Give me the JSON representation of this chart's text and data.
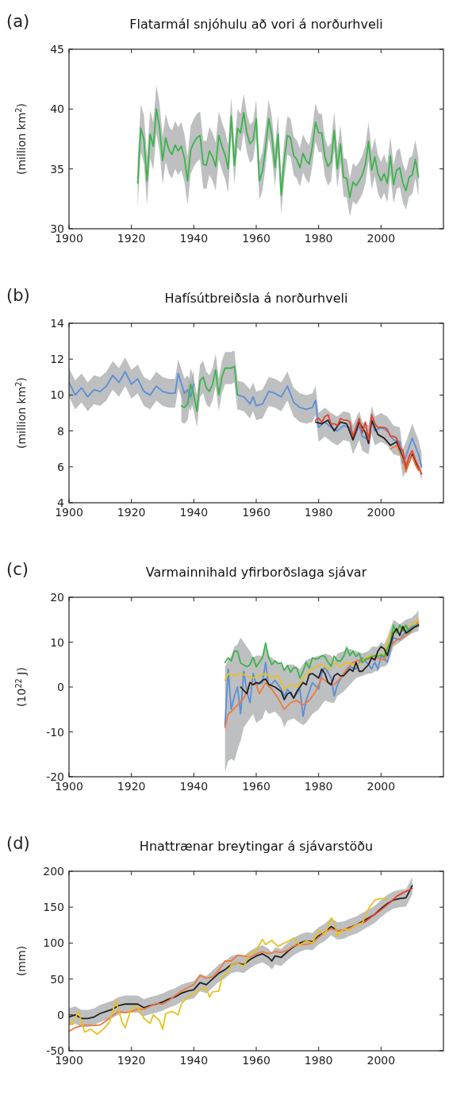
{
  "chart_data": [
    {
      "type": "line",
      "title": "Flatarmál snjóhulu að vori á norðurhveli",
      "ylabel": "(million km$^{2}$)",
      "annotations": [
        "(a)"
      ],
      "xlim": [
        1900,
        2020
      ],
      "xticks": [
        1900,
        1920,
        1940,
        1960,
        1980,
        2000
      ],
      "ylim": [
        30,
        45
      ],
      "yticks": [
        30,
        35,
        40,
        45
      ],
      "series": [
        {
          "color": "#3cb44a",
          "x": [
            1922,
            1923,
            1924,
            1925,
            1926,
            1927,
            1928,
            1929,
            1930,
            1931,
            1932,
            1933,
            1934,
            1935,
            1936,
            1937,
            1938,
            1939,
            1940,
            1941,
            1942,
            1943,
            1944,
            1945,
            1946,
            1947,
            1948,
            1949,
            1950,
            1951,
            1952,
            1953,
            1954,
            1955,
            1956,
            1957,
            1958,
            1959,
            1960,
            1961,
            1962,
            1963,
            1964,
            1965,
            1966,
            1967,
            1968,
            1969,
            1970,
            1971,
            1972,
            1973,
            1974,
            1975,
            1976,
            1977,
            1978,
            1979,
            1980,
            1981,
            1982,
            1983,
            1984,
            1985,
            1986,
            1987,
            1988,
            1989,
            1990,
            1991,
            1992,
            1993,
            1994,
            1995,
            1996,
            1997,
            1998,
            1999,
            2000,
            2001,
            2002,
            2003,
            2004,
            2005,
            2006,
            2007,
            2008,
            2009,
            2010,
            2011,
            2012
          ],
          "values": [
            33.8,
            38.4,
            37.5,
            34.0,
            37.9,
            36.9,
            40.0,
            38.5,
            35.7,
            37.6,
            36.6,
            36.2,
            37.0,
            36.5,
            36.9,
            35.9,
            34.0,
            36.6,
            37.2,
            37.6,
            37.8,
            35.4,
            35.3,
            36.5,
            36.0,
            35.2,
            37.8,
            36.9,
            36.2,
            35.0,
            39.4,
            35.3,
            38.4,
            38.0,
            39.7,
            38.0,
            37.1,
            37.4,
            39.2,
            34.0,
            34.8,
            36.8,
            39.2,
            37.8,
            35.1,
            37.9,
            32.8,
            35.8,
            37.8,
            37.6,
            36.1,
            35.8,
            35.1,
            36.3,
            35.7,
            35.4,
            36.9,
            38.9,
            38.0,
            38.0,
            36.0,
            35.2,
            35.6,
            38.2,
            35.0,
            37.1,
            34.3,
            34.2,
            32.6,
            33.9,
            33.6,
            34.0,
            34.5,
            35.4,
            37.3,
            34.9,
            36.0,
            34.6,
            34.0,
            34.6,
            33.8,
            36.1,
            33.7,
            34.9,
            35.1,
            33.8,
            33.2,
            34.3,
            34.5,
            35.8,
            34.3
          ],
          "lower": [
            31.8,
            36.4,
            35.5,
            32.0,
            35.9,
            34.9,
            38.0,
            36.5,
            33.7,
            35.6,
            34.6,
            34.2,
            35.0,
            34.5,
            34.9,
            33.9,
            32.0,
            34.6,
            35.2,
            35.6,
            35.8,
            33.4,
            33.3,
            34.5,
            34.0,
            33.2,
            35.8,
            34.9,
            34.2,
            33.0,
            37.8,
            33.7,
            36.8,
            36.4,
            38.1,
            36.4,
            35.5,
            35.8,
            37.6,
            32.4,
            33.2,
            35.2,
            37.6,
            36.2,
            33.5,
            36.3,
            31.2,
            34.2,
            36.2,
            36.0,
            34.5,
            34.2,
            33.5,
            34.7,
            34.1,
            33.8,
            35.3,
            37.3,
            36.4,
            36.4,
            34.4,
            33.6,
            34.0,
            36.6,
            33.4,
            35.5,
            32.7,
            32.6,
            31.0,
            32.3,
            32.0,
            32.4,
            32.9,
            33.8,
            35.7,
            33.3,
            34.4,
            33.0,
            32.4,
            33.0,
            32.2,
            34.5,
            32.1,
            33.3,
            33.5,
            32.2,
            31.6,
            32.7,
            32.9,
            34.2,
            32.7
          ],
          "upper": [
            35.8,
            40.4,
            39.5,
            36.0,
            39.9,
            38.9,
            42.0,
            40.5,
            37.7,
            39.6,
            38.6,
            38.2,
            39.0,
            38.5,
            38.9,
            37.9,
            36.0,
            38.6,
            39.2,
            39.6,
            39.8,
            37.4,
            37.3,
            38.5,
            38.0,
            37.2,
            39.8,
            38.9,
            38.2,
            37.0,
            41.0,
            36.9,
            40.0,
            39.6,
            41.3,
            39.6,
            38.7,
            39.0,
            40.8,
            35.6,
            36.4,
            38.4,
            40.8,
            39.4,
            36.7,
            39.5,
            34.4,
            37.4,
            39.4,
            39.2,
            37.7,
            37.4,
            36.7,
            37.9,
            37.3,
            37.0,
            38.5,
            40.5,
            39.6,
            39.6,
            37.6,
            36.8,
            37.2,
            39.8,
            36.6,
            38.7,
            35.9,
            35.8,
            34.2,
            35.5,
            35.2,
            35.6,
            36.1,
            37.0,
            38.9,
            36.5,
            37.6,
            36.2,
            35.6,
            36.2,
            35.4,
            37.7,
            35.3,
            36.5,
            36.7,
            35.4,
            34.8,
            35.9,
            36.1,
            37.4,
            35.9
          ]
        }
      ]
    },
    {
      "type": "line",
      "title": "Hafísútbreiðsla á norðurhveli",
      "ylabel": "(million km$^{2}$)",
      "annotations": [
        "(b)"
      ],
      "xlim": [
        1900,
        2020
      ],
      "xticks": [
        1900,
        1920,
        1940,
        1960,
        1980,
        2000
      ],
      "ylim": [
        4,
        14
      ],
      "yticks": [
        4,
        6,
        8,
        10,
        12,
        14
      ],
      "series": [
        {
          "color": "#5b8fd6",
          "x": [
            1900,
            1902,
            1904,
            1906,
            1908,
            1910,
            1912,
            1914,
            1916,
            1918,
            1920,
            1922,
            1924,
            1926,
            1928,
            1930,
            1932,
            1934,
            1935,
            1937,
            1938,
            1939,
            1940,
            1947,
            1954,
            1956,
            1958,
            1959,
            1960,
            1962,
            1964,
            1966,
            1968,
            1970,
            1972,
            1974,
            1976,
            1978,
            1979,
            1980,
            1982,
            1984,
            1986,
            1988,
            1990,
            1991,
            1993,
            1994,
            1996,
            1997,
            1998,
            2000,
            2002,
            2004,
            2006,
            2007,
            2008,
            2010,
            2012,
            2013
          ],
          "values": [
            10.7,
            10.0,
            10.4,
            9.9,
            10.3,
            10.2,
            10.5,
            11.1,
            10.7,
            11.3,
            10.6,
            10.9,
            10.2,
            10.0,
            10.5,
            10.2,
            10.1,
            10.1,
            11.2,
            10.1,
            10.3,
            9.9,
            10.6,
            null,
            10.0,
            9.9,
            9.5,
            9.9,
            9.4,
            9.5,
            10.2,
            10.1,
            9.9,
            10.5,
            9.6,
            9.3,
            9.2,
            9.3,
            9.7,
            8.2,
            8.5,
            8.2,
            8.0,
            8.3,
            8.2,
            7.5,
            8.3,
            7.7,
            7.5,
            8.6,
            8.0,
            8.2,
            8.0,
            7.5,
            7.4,
            6.2,
            6.6,
            7.6,
            6.7,
            6.0
          ],
          "lower": [
            9.9,
            9.2,
            9.6,
            9.1,
            9.5,
            9.4,
            9.7,
            10.3,
            9.9,
            10.5,
            9.8,
            10.1,
            9.4,
            9.2,
            9.7,
            9.4,
            9.3,
            9.3,
            10.4,
            9.3,
            9.5,
            9.1,
            9.8,
            null,
            9.2,
            9.1,
            8.7,
            9.1,
            8.6,
            8.7,
            9.4,
            9.3,
            9.1,
            9.7,
            8.8,
            8.5,
            8.4,
            8.5,
            8.9,
            7.4,
            7.7,
            7.4,
            7.2,
            7.5,
            7.4,
            6.7,
            7.5,
            6.9,
            6.7,
            7.8,
            7.2,
            7.4,
            7.2,
            6.7,
            6.6,
            5.4,
            5.8,
            6.8,
            5.9,
            5.2
          ],
          "upper": [
            11.5,
            10.8,
            11.2,
            10.7,
            11.1,
            11.0,
            11.3,
            11.9,
            11.5,
            12.1,
            11.4,
            11.7,
            11.0,
            10.8,
            11.3,
            11.0,
            10.9,
            10.9,
            12.0,
            10.9,
            11.1,
            10.7,
            11.4,
            null,
            10.8,
            10.7,
            10.3,
            10.7,
            10.2,
            10.3,
            11.0,
            10.9,
            10.7,
            11.3,
            10.4,
            10.1,
            10.0,
            10.1,
            10.5,
            9.0,
            9.3,
            9.0,
            8.8,
            9.1,
            9.0,
            8.3,
            9.1,
            8.5,
            8.3,
            9.4,
            8.8,
            9.0,
            8.8,
            8.3,
            8.2,
            7.0,
            7.4,
            8.4,
            7.5,
            6.8
          ]
        },
        {
          "color": "#3cb44a",
          "x": [
            1936,
            1937,
            1938,
            1939,
            1940,
            1941,
            1942,
            1943,
            1944,
            1945,
            1946,
            1947,
            1948,
            1949,
            1950,
            1951,
            1952,
            1953,
            1954
          ],
          "values": [
            9.4,
            9.3,
            9.5,
            10.6,
            10.0,
            9.1,
            10.8,
            11.0,
            10.4,
            10.2,
            10.6,
            11.4,
            10.0,
            11.0,
            11.5,
            11.5,
            11.5,
            11.6,
            10.0
          ],
          "lower": [
            8.5,
            8.4,
            8.6,
            9.7,
            9.1,
            8.2,
            9.9,
            10.1,
            9.5,
            9.3,
            9.7,
            10.5,
            9.1,
            10.1,
            10.6,
            10.6,
            10.6,
            10.7,
            9.1
          ],
          "upper": [
            10.3,
            10.2,
            10.4,
            11.5,
            10.9,
            10.0,
            11.7,
            11.9,
            11.3,
            11.1,
            11.5,
            12.3,
            10.9,
            11.9,
            12.4,
            12.4,
            12.4,
            12.5,
            10.9
          ]
        },
        {
          "color": "#222222",
          "x": [
            1979,
            1981,
            1983,
            1985,
            1987,
            1989,
            1991,
            1993,
            1995,
            1996,
            1997,
            1999,
            2001,
            2003,
            2005,
            2007,
            2008,
            2010,
            2012
          ],
          "values": [
            8.5,
            8.4,
            8.6,
            8.0,
            8.5,
            8.4,
            7.5,
            8.5,
            7.9,
            7.3,
            8.6,
            7.8,
            7.6,
            7.2,
            7.4,
            6.5,
            5.8,
            6.7,
            5.9
          ]
        },
        {
          "color": "#f07a3c",
          "x": [
            2003,
            2005,
            2006,
            2007,
            2008,
            2009,
            2010,
            2011,
            2012
          ],
          "values": [
            7.0,
            7.2,
            6.8,
            6.4,
            5.7,
            6.3,
            6.6,
            6.1,
            5.8
          ]
        },
        {
          "color": "#e8412b",
          "x": [
            1979,
            1980,
            1981,
            1982,
            1983,
            1984,
            1985,
            1986,
            1987,
            1988,
            1989,
            1990,
            1991,
            1992,
            1993,
            1994,
            1995,
            1996,
            1997,
            1998,
            1999,
            2000,
            2001,
            2002,
            2003,
            2004,
            2005,
            2006,
            2007,
            2008,
            2009,
            2010,
            2011,
            2012,
            2013
          ],
          "values": [
            8.6,
            8.7,
            8.5,
            8.8,
            8.9,
            8.4,
            8.4,
            8.3,
            8.7,
            8.6,
            8.6,
            8.5,
            7.7,
            8.2,
            8.7,
            7.9,
            8.5,
            7.5,
            8.9,
            8.4,
            8.2,
            8.2,
            8.2,
            8.1,
            7.7,
            7.7,
            7.6,
            7.1,
            6.9,
            6.0,
            6.6,
            6.9,
            6.4,
            6.0,
            5.6
          ]
        }
      ]
    },
    {
      "type": "line",
      "title": "Varmainnihald yfirborðslaga sjávar",
      "ylabel": "(10$^{22}$ J)",
      "annotations": [
        "(c)"
      ],
      "xlim": [
        1900,
        2020
      ],
      "xticks": [
        1900,
        1920,
        1940,
        1960,
        1980,
        2000
      ],
      "ylim": [
        -20,
        20
      ],
      "yticks": [
        -20,
        -10,
        0,
        10,
        20
      ],
      "series": [
        {
          "color": "#5b8fd6",
          "x": [
            1950,
            1951,
            1952,
            1953,
            1954,
            1955,
            1956,
            1957,
            1958,
            1959,
            1960,
            1962,
            1963,
            1964,
            1966,
            1968,
            1969,
            1970,
            1972,
            1974,
            1975,
            1976,
            1978,
            1980,
            1981,
            1982,
            1984,
            1985,
            1986,
            1988,
            1990,
            1992,
            1994,
            1996,
            1997,
            1998,
            1999,
            2000,
            2001,
            2002,
            2004,
            2006,
            2008,
            2010,
            2012
          ],
          "values": [
            -8.5,
            4.0,
            -5.0,
            -2.0,
            0.0,
            -6.0,
            3.5,
            -1.0,
            -3.5,
            3.0,
            0.5,
            1.0,
            5.5,
            0.0,
            1.5,
            -0.5,
            -2.0,
            -0.5,
            -2.5,
            -0.5,
            -6.5,
            -3.0,
            1.0,
            -0.5,
            3.0,
            4.5,
            2.0,
            -2.0,
            0.5,
            3.0,
            4.5,
            4.0,
            6.5,
            5.0,
            4.0,
            5.5,
            4.0,
            7.0,
            6.5,
            5.5,
            11.0,
            10.5,
            12.5,
            13.5,
            14.0
          ],
          "lower": [
            -19,
            -16.5,
            -16,
            -16.5,
            -14,
            -12,
            -9,
            -8,
            -7,
            -6,
            -8,
            -7,
            -5,
            -6,
            -5.5,
            -7,
            -9,
            -7.5,
            -7,
            -8,
            -8.5,
            -8,
            -6,
            -5,
            -4,
            -3,
            -3.5,
            -3.5,
            -2,
            -1,
            0.5,
            2,
            2.5,
            3,
            3,
            3.5,
            3.5,
            4.5,
            4.5,
            5,
            9,
            10,
            11,
            12,
            12.5
          ],
          "upper": [
            4.5,
            6,
            7,
            9,
            9.5,
            11,
            10,
            9,
            8,
            6.5,
            7,
            7,
            9,
            7,
            6,
            5,
            4,
            5,
            5,
            4,
            5,
            6,
            6.5,
            7,
            7,
            7.5,
            7,
            6,
            7.5,
            8,
            8.5,
            8,
            7.5,
            8,
            9,
            9,
            9,
            10,
            9.5,
            11,
            15,
            14,
            15,
            15.5,
            17
          ]
        },
        {
          "color": "#f07a3c",
          "x": [
            1950,
            1951,
            1952,
            1954,
            1956,
            1958,
            1960,
            1961,
            1963,
            1965,
            1967,
            1969,
            1971,
            1973,
            1975,
            1977,
            1979,
            1981,
            1983,
            1985,
            1987,
            1989,
            1991,
            1993,
            1995,
            1997,
            1999,
            2001,
            2003,
            2005,
            2007,
            2009,
            2012
          ],
          "values": [
            -9,
            -6.0,
            -5.5,
            -4.0,
            -2.5,
            1.0,
            0.5,
            -1.5,
            1.0,
            -0.5,
            -2.5,
            -5.0,
            -3.5,
            -3.0,
            -4.0,
            -3.0,
            -1.0,
            2.0,
            1.0,
            0.5,
            2.0,
            4.0,
            5.5,
            6.0,
            6.0,
            6.5,
            6.5,
            6.0,
            9.0,
            10.5,
            11.0,
            12.0,
            14.5
          ]
        },
        {
          "color": "#e8c11f",
          "x": [
            1950,
            1951,
            1953,
            1955,
            1957,
            1959,
            1961,
            1963,
            1965,
            1967,
            1969,
            1971,
            1973,
            1975,
            1977,
            1979,
            1981,
            1983,
            1985,
            1987,
            1989,
            1991,
            1993,
            1995,
            1997,
            1999,
            2001,
            2003,
            2005,
            2007,
            2009,
            2012
          ],
          "values": [
            1.5,
            3.0,
            2.5,
            3.0,
            2.5,
            2.0,
            2.5,
            3.0,
            2.0,
            2.5,
            -0.5,
            0.5,
            0.0,
            2.0,
            3.5,
            4.5,
            5.0,
            4.0,
            5.5,
            4.5,
            5.5,
            5.0,
            5.0,
            6.5,
            7.0,
            7.0,
            7.5,
            12.0,
            13.0,
            12.5,
            13.5,
            15.0
          ]
        },
        {
          "color": "#3cb44a",
          "x": [
            1950,
            1951,
            1952,
            1953,
            1954,
            1955,
            1957,
            1958,
            1959,
            1960,
            1962,
            1963,
            1964,
            1965,
            1966,
            1967,
            1968,
            1969,
            1970,
            1971,
            1972,
            1973,
            1974,
            1975,
            1976,
            1977,
            1978,
            1979,
            1980,
            1981,
            1982,
            1983,
            1984,
            1985,
            1986,
            1987,
            1988,
            1989,
            1990,
            1991,
            1992,
            1993,
            1994,
            1995,
            1996,
            1997,
            1998,
            1999,
            2000,
            2001,
            2002,
            2003,
            2004,
            2005,
            2006,
            2007,
            2008,
            2009,
            2010,
            2011,
            2012
          ],
          "values": [
            5.5,
            6.5,
            5.8,
            8.0,
            8.0,
            5.3,
            4.5,
            5.0,
            6.6,
            4.5,
            6.5,
            9.8,
            6.5,
            5.0,
            5.8,
            5.2,
            5.4,
            3.7,
            4.8,
            3.3,
            4.3,
            4.2,
            2.0,
            3.5,
            5.5,
            4.2,
            6.5,
            6.2,
            6.4,
            7.0,
            6.8,
            5.5,
            4.6,
            6.9,
            5.8,
            5.8,
            6.8,
            8.8,
            7.0,
            8.0,
            6.8,
            7.5,
            5.4,
            6.2,
            6.4,
            6.8,
            7.0,
            6.8,
            7.2,
            6.8,
            8.6,
            10.0,
            13.8,
            12.0,
            13.8,
            12.5,
            13.8,
            12.2,
            13.0,
            13.6,
            13.5
          ]
        },
        {
          "color": "#222222",
          "x": [
            1955,
            1957,
            1958,
            1959,
            1960,
            1961,
            1962,
            1963,
            1964,
            1966,
            1968,
            1969,
            1970,
            1971,
            1972,
            1973,
            1975,
            1976,
            1977,
            1978,
            1980,
            1981,
            1982,
            1983,
            1984,
            1985,
            1986,
            1987,
            1988,
            1990,
            1991,
            1992,
            1993,
            1994,
            1996,
            1997,
            1998,
            1999,
            2000,
            2001,
            2002,
            2003,
            2004,
            2005,
            2006,
            2007,
            2008,
            2010,
            2012
          ],
          "values": [
            0,
            -1.5,
            1.0,
            0.5,
            1.0,
            0.8,
            1.5,
            1.8,
            0.6,
            0.0,
            -1.0,
            -2.8,
            -1.5,
            -1.2,
            -2.5,
            -1.0,
            1.0,
            0.5,
            2.8,
            3.0,
            2.0,
            4.0,
            3.0,
            1.0,
            0.5,
            2.5,
            3.0,
            2.5,
            2.5,
            4.0,
            3.5,
            5.5,
            3.5,
            3.5,
            5.0,
            6.5,
            6.0,
            8.0,
            9.0,
            8.5,
            7.0,
            9.5,
            12.0,
            13.0,
            11.5,
            13.5,
            12.0,
            13.0,
            13.8
          ]
        }
      ]
    },
    {
      "type": "line",
      "title": "Hnattrænar breytingar á sjávarstöðu",
      "ylabel": "(mm)",
      "annotations": [
        "(d)"
      ],
      "xlim": [
        1900,
        2020
      ],
      "xticks": [
        1900,
        1920,
        1940,
        1960,
        1980,
        2000
      ],
      "ylim": [
        -50,
        200
      ],
      "yticks": [
        -50,
        0,
        50,
        100,
        150,
        200
      ],
      "series": [
        {
          "color": "#222222",
          "x": [
            1900,
            1902,
            1904,
            1906,
            1908,
            1910,
            1912,
            1914,
            1916,
            1918,
            1920,
            1922,
            1924,
            1926,
            1928,
            1930,
            1932,
            1934,
            1936,
            1938,
            1940,
            1942,
            1944,
            1946,
            1948,
            1950,
            1952,
            1954,
            1956,
            1958,
            1960,
            1962,
            1964,
            1965,
            1966,
            1968,
            1970,
            1972,
            1974,
            1976,
            1978,
            1980,
            1982,
            1984,
            1986,
            1988,
            1990,
            1992,
            1994,
            1996,
            1998,
            2000,
            2002,
            2004,
            2006,
            2008,
            2010
          ],
          "values": [
            -3,
            0,
            -5,
            -5,
            -3,
            2,
            5,
            8,
            13,
            15,
            15,
            15,
            10,
            13,
            15,
            18,
            22,
            25,
            30,
            33,
            35,
            45,
            42,
            50,
            58,
            63,
            70,
            72,
            70,
            77,
            82,
            85,
            80,
            75,
            82,
            80,
            88,
            95,
            100,
            103,
            102,
            110,
            115,
            123,
            117,
            118,
            122,
            125,
            130,
            135,
            140,
            148,
            155,
            160,
            162,
            163,
            180
          ],
          "lower": [
            -15,
            -12,
            -17,
            -17,
            -15,
            -10,
            -7,
            -4,
            1,
            3,
            3,
            3,
            -2,
            1,
            3,
            6,
            10,
            13,
            18,
            21,
            23,
            33,
            30,
            38,
            46,
            51,
            58,
            60,
            58,
            65,
            70,
            73,
            68,
            63,
            70,
            68,
            76,
            83,
            88,
            91,
            90,
            98,
            103,
            111,
            105,
            106,
            110,
            113,
            118,
            123,
            128,
            136,
            143,
            148,
            150,
            151,
            168
          ],
          "upper": [
            9,
            12,
            7,
            7,
            9,
            14,
            17,
            20,
            25,
            27,
            27,
            27,
            22,
            25,
            27,
            30,
            34,
            37,
            42,
            45,
            47,
            57,
            54,
            62,
            70,
            75,
            82,
            84,
            82,
            89,
            94,
            97,
            92,
            87,
            94,
            92,
            100,
            107,
            112,
            115,
            114,
            122,
            127,
            135,
            129,
            130,
            134,
            137,
            142,
            147,
            152,
            160,
            167,
            172,
            174,
            175,
            192
          ]
        },
        {
          "color": "#f07a3c",
          "x": [
            1900,
            1902,
            1904,
            1906,
            1908,
            1910,
            1912,
            1914,
            1916,
            1918,
            1920,
            1922,
            1924,
            1926,
            1928,
            1930,
            1932,
            1934,
            1936,
            1938,
            1940,
            1942,
            1944,
            1946,
            1948,
            1950,
            1952,
            1954,
            1956,
            1958,
            1960,
            1962,
            1964,
            1966,
            1968,
            1970,
            1972,
            1974,
            1976,
            1978,
            1980,
            1982,
            1984,
            1986,
            1988,
            1990,
            1993
          ],
          "values": [
            -23,
            -18,
            -15,
            -14,
            -15,
            -14,
            -8,
            -1,
            5,
            3,
            5,
            8,
            8,
            12,
            16,
            15,
            20,
            27,
            33,
            38,
            42,
            55,
            51,
            53,
            62,
            75,
            75,
            83,
            82,
            80,
            85,
            88,
            85,
            88,
            87,
            90,
            96,
            98,
            98,
            100,
            108,
            115,
            120,
            117,
            118,
            121,
            127
          ]
        },
        {
          "color": "#e8412b",
          "x": [
            1993,
            1995,
            1997,
            1999,
            2001,
            2003,
            2005,
            2007,
            2010
          ],
          "values": [
            127,
            130,
            137,
            143,
            150,
            157,
            165,
            170,
            176
          ]
        },
        {
          "color": "#e8c11f",
          "x": [
            1900,
            1901,
            1903,
            1905,
            1907,
            1909,
            1911,
            1913,
            1915,
            1917,
            1918,
            1920,
            1922,
            1924,
            1926,
            1927,
            1929,
            1930,
            1931,
            1933,
            1935,
            1936,
            1938,
            1940,
            1942,
            1944,
            1945,
            1946,
            1948,
            1949,
            1951,
            1952,
            1954,
            1956,
            1958,
            1960,
            1962,
            1963,
            1965,
            1967,
            1968,
            1970,
            1972,
            1974,
            1976,
            1978,
            1980,
            1982,
            1984,
            1985,
            1986,
            1988,
            1990,
            1992,
            1994,
            1996,
            1998,
            2000,
            2002
          ],
          "values": [
            -10,
            -14,
            5,
            -24,
            -20,
            -27,
            -20,
            -10,
            20,
            -10,
            -18,
            10,
            10,
            -5,
            -12,
            0,
            -8,
            -20,
            2,
            5,
            0,
            15,
            25,
            30,
            35,
            38,
            25,
            32,
            33,
            52,
            60,
            70,
            72,
            68,
            85,
            90,
            105,
            98,
            104,
            95,
            98,
            102,
            107,
            97,
            103,
            100,
            118,
            112,
            135,
            130,
            110,
            120,
            118,
            125,
            128,
            148,
            160,
            162,
            162
          ]
        }
      ]
    }
  ]
}
